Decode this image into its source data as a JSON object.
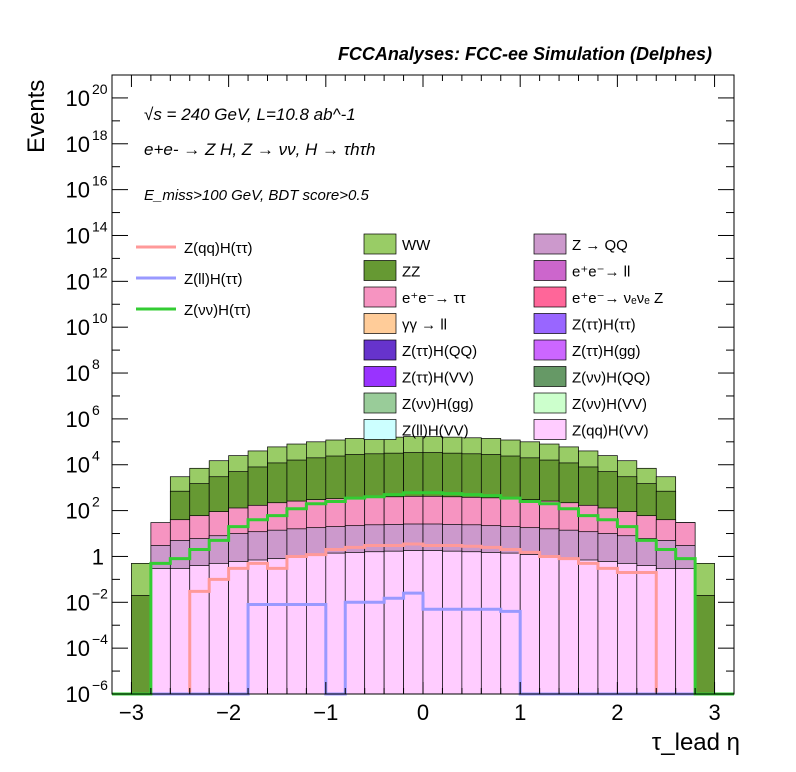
{
  "chart_data": {
    "type": "bar",
    "title": "FCCAnalyses: FCC-ee Simulation (Delphes)",
    "xlabel": "τ_lead η",
    "ylabel": "Events",
    "yscale": "log",
    "xlim": [
      -3.2,
      3.2
    ],
    "ylim": [
      1e-06,
      1e+21
    ],
    "annotations": [
      "√s = 240 GeV, L=10.8 ab^-1",
      "e+e- → Z H, Z → νν, H → τhτh",
      "E_miss>100 GeV, BDT score>0.5"
    ],
    "x_ticks": [
      -3,
      -2,
      -1,
      0,
      1,
      2,
      3
    ],
    "x_tick_labels": [
      "−3",
      "−2",
      "−1",
      "0",
      "1",
      "2",
      "3"
    ],
    "y_ticks": [
      1e-06,
      0.0001,
      0.01,
      1,
      100.0,
      10000.0,
      1000000.0,
      100000000.0,
      10000000000.0,
      1000000000000.0,
      100000000000000.0,
      1e+16,
      1e+18,
      1e+20
    ],
    "y_tick_labels": [
      {
        "base": "10",
        "exp": "−6"
      },
      {
        "base": "10",
        "exp": "−4"
      },
      {
        "base": "10",
        "exp": "−2"
      },
      {
        "base": "1",
        "exp": ""
      },
      {
        "base": "10",
        "exp": "2"
      },
      {
        "base": "10",
        "exp": "4"
      },
      {
        "base": "10",
        "exp": "6"
      },
      {
        "base": "10",
        "exp": "8"
      },
      {
        "base": "10",
        "exp": "10"
      },
      {
        "base": "10",
        "exp": "12"
      },
      {
        "base": "10",
        "exp": "14"
      },
      {
        "base": "10",
        "exp": "16"
      },
      {
        "base": "10",
        "exp": "18"
      },
      {
        "base": "10",
        "exp": "20"
      }
    ],
    "bin_edges": [
      -3.2,
      -3.0,
      -2.8,
      -2.6,
      -2.4,
      -2.2,
      -2.0,
      -1.8,
      -1.6,
      -1.4,
      -1.2,
      -1.0,
      -0.8,
      -0.6,
      -0.4,
      -0.2,
      0.0,
      0.2,
      0.4,
      0.6,
      0.8,
      1.0,
      1.2,
      1.4,
      1.6,
      1.8,
      2.0,
      2.2,
      2.4,
      2.6,
      2.8,
      3.0,
      3.2
    ],
    "stack_series": [
      {
        "name": "WW",
        "color": "#99cc66",
        "totals": [
          1e-06,
          0.5,
          3,
          3000,
          7000,
          15000,
          25000,
          40000,
          60000,
          80000,
          100000,
          120000,
          140000,
          150000,
          160000,
          170000,
          170000,
          160000,
          150000,
          140000,
          120000,
          100000,
          80000,
          60000,
          40000,
          25000,
          15000,
          7000,
          3000,
          30,
          0.5,
          1e-06
        ]
      },
      {
        "name": "ZZ",
        "color": "#669933",
        "totals": [
          1e-06,
          0.02,
          0.2,
          700,
          1500,
          3000,
          5000,
          8000,
          12000,
          16000,
          20000,
          24000,
          28000,
          30000,
          32000,
          34000,
          34000,
          32000,
          30000,
          28000,
          24000,
          20000,
          16000,
          12000,
          8000,
          5000,
          3000,
          1500,
          700,
          0.2,
          0.02,
          1e-06
        ]
      },
      {
        "name": "e+e- → ττ",
        "color": "#f694c1",
        "totals": [
          1e-06,
          1e-06,
          30,
          40,
          60,
          90,
          130,
          170,
          220,
          260,
          300,
          330,
          360,
          380,
          400,
          420,
          420,
          400,
          380,
          360,
          330,
          300,
          260,
          220,
          170,
          130,
          90,
          60,
          40,
          30,
          1e-06,
          1e-06
        ]
      },
      {
        "name": "Z → QQ",
        "color": "#cc99cc",
        "totals": [
          1e-06,
          1e-06,
          3,
          5,
          6,
          8,
          10,
          12,
          14,
          16,
          18,
          20,
          22,
          24,
          25,
          26,
          26,
          25,
          24,
          22,
          20,
          18,
          16,
          14,
          12,
          10,
          8,
          6,
          5,
          3,
          1e-06,
          1e-06
        ]
      },
      {
        "name": "Z(qq)H(VV)",
        "color": "#ffccff",
        "totals": [
          1e-06,
          1e-06,
          0.3,
          0.3,
          0.4,
          0.5,
          0.6,
          0.7,
          0.8,
          1.0,
          1.2,
          1.4,
          1.5,
          1.6,
          1.7,
          1.8,
          1.8,
          1.7,
          1.6,
          1.5,
          1.4,
          1.2,
          1.0,
          0.8,
          0.7,
          0.6,
          0.5,
          0.4,
          0.3,
          0.3,
          1e-06,
          1e-06
        ]
      }
    ],
    "line_series": [
      {
        "name": "Z(qq)H(ττ)",
        "color": "#ff9999",
        "values": [
          1e-06,
          1e-06,
          1e-06,
          1e-06,
          0.03,
          0.1,
          0.3,
          0.5,
          0.3,
          1.0,
          1.2,
          2.0,
          2.5,
          3.0,
          3.0,
          3.5,
          3.0,
          3.0,
          2.8,
          2.5,
          2.0,
          1.5,
          1.0,
          0.8,
          0.5,
          0.3,
          0.2,
          0.2,
          1e-06,
          1e-06,
          1e-06,
          1e-06
        ]
      },
      {
        "name": "Z(ll)H(ττ)",
        "color": "#9999ff",
        "values": [
          1e-06,
          1e-06,
          1e-06,
          1e-06,
          1e-06,
          1e-06,
          1e-06,
          0.008,
          0.008,
          0.008,
          0.008,
          1e-06,
          0.01,
          0.01,
          0.015,
          0.025,
          0.005,
          0.005,
          0.005,
          0.005,
          0.004,
          1e-06,
          1e-06,
          1e-06,
          1e-06,
          1e-06,
          1e-06,
          1e-06,
          1e-06,
          1e-06,
          1e-06,
          1e-06
        ]
      },
      {
        "name": "Z(νν)H(ττ)",
        "color": "#33cc33",
        "values": [
          1e-06,
          1e-06,
          0.5,
          0.8,
          2,
          5,
          20,
          40,
          60,
          120,
          200,
          250,
          350,
          400,
          500,
          600,
          600,
          550,
          500,
          450,
          350,
          250,
          200,
          120,
          60,
          40,
          20,
          5,
          2,
          0.8,
          1e-06,
          1e-06
        ]
      }
    ]
  },
  "legend": {
    "lines": [
      {
        "label": "Z(qq)H(ττ)",
        "color": "#ff9999"
      },
      {
        "label": "Z(ll)H(ττ)",
        "color": "#9999ff"
      },
      {
        "label": "Z(νν)H(ττ)",
        "color": "#33cc33"
      }
    ],
    "boxes_col1": [
      {
        "label": "WW",
        "color": "#99cc66"
      },
      {
        "label": "ZZ",
        "color": "#669933"
      },
      {
        "label": "e⁺e⁻→ ττ",
        "color": "#f694c1"
      },
      {
        "label": "γγ → ll",
        "color": "#ffcc99"
      },
      {
        "label": "Z(ττ)H(QQ)",
        "color": "#6633cc"
      },
      {
        "label": "Z(ττ)H(VV)",
        "color": "#9933ff"
      },
      {
        "label": "Z(νν)H(gg)",
        "color": "#99cc99"
      },
      {
        "label": "Z(ll)H(VV)",
        "color": "#ccffff"
      }
    ],
    "boxes_col2": [
      {
        "label": "Z → QQ",
        "color": "#cc99cc"
      },
      {
        "label": "e⁺e⁻→ ll",
        "color": "#cc66cc"
      },
      {
        "label": "e⁺e⁻→ νₑνₑ Z",
        "color": "#ff6699"
      },
      {
        "label": "Z(ττ)H(ττ)",
        "color": "#9966ff"
      },
      {
        "label": "Z(ττ)H(gg)",
        "color": "#cc66ff"
      },
      {
        "label": "Z(νν)H(QQ)",
        "color": "#669966"
      },
      {
        "label": "Z(νν)H(VV)",
        "color": "#ccffcc"
      },
      {
        "label": "Z(qq)H(VV)",
        "color": "#ffccff"
      }
    ]
  }
}
